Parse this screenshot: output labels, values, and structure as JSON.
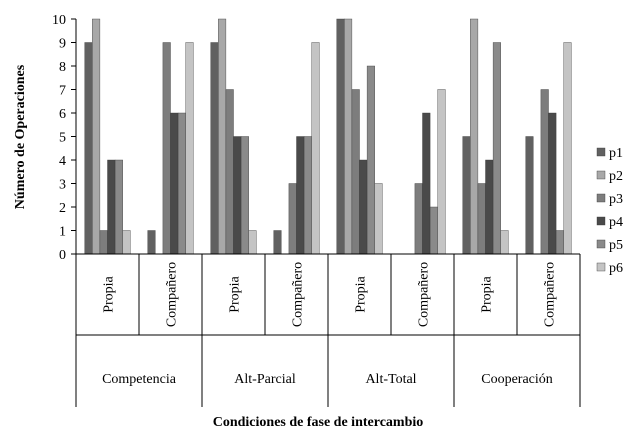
{
  "chart_data": {
    "type": "bar",
    "xlabel": "Condiciones de fase de intercambio",
    "ylabel": "Número de Operaciones",
    "ylim": [
      0,
      10
    ],
    "yticks": [
      "0",
      "1",
      "2",
      "3",
      "4",
      "5",
      "6",
      "7",
      "8",
      "9",
      "10"
    ],
    "groups": [
      "Competencia",
      "Alt-Parcial",
      "Alt-Total",
      "Cooperación"
    ],
    "subcategories": [
      "Propia",
      "Compañero"
    ],
    "categories": [
      "Competencia Propia",
      "Competencia Compañero",
      "Alt-Parcial Propia",
      "Alt-Parcial Compañero",
      "Alt-Total Propia",
      "Alt-Total Compañero",
      "Cooperación Propia",
      "Cooperación Compañero"
    ],
    "series": [
      {
        "name": "p1",
        "color": "#616161",
        "values": [
          9,
          1,
          9,
          1,
          10,
          0,
          5,
          5
        ]
      },
      {
        "name": "p2",
        "color": "#a8a8a8",
        "values": [
          10,
          0,
          10,
          0,
          10,
          0,
          10,
          0
        ]
      },
      {
        "name": "p3",
        "color": "#7d7d7d",
        "values": [
          1,
          9,
          7,
          3,
          7,
          3,
          3,
          7
        ]
      },
      {
        "name": "p4",
        "color": "#4a4a4a",
        "values": [
          4,
          6,
          5,
          5,
          4,
          6,
          4,
          6
        ]
      },
      {
        "name": "p5",
        "color": "#8a8a8a",
        "values": [
          4,
          6,
          5,
          5,
          8,
          2,
          9,
          1
        ]
      },
      {
        "name": "p6",
        "color": "#c4c4c4",
        "values": [
          1,
          9,
          1,
          9,
          3,
          7,
          1,
          9
        ]
      }
    ],
    "legend_position": "right",
    "grid": false
  }
}
